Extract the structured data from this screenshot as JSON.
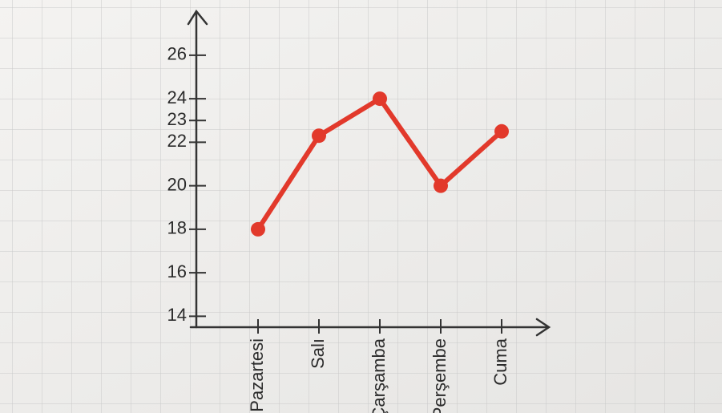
{
  "chart_data": {
    "type": "line",
    "categories": [
      "Pazartesi",
      "Salı",
      "Çarşamba",
      "Perşembe",
      "Cuma"
    ],
    "values": [
      18,
      22.3,
      24,
      20,
      22.5
    ],
    "color": "#e2392b",
    "ylim": [
      13.5,
      27.8
    ],
    "yticks": [
      14,
      16,
      18,
      20,
      22,
      23,
      24,
      26
    ]
  }
}
